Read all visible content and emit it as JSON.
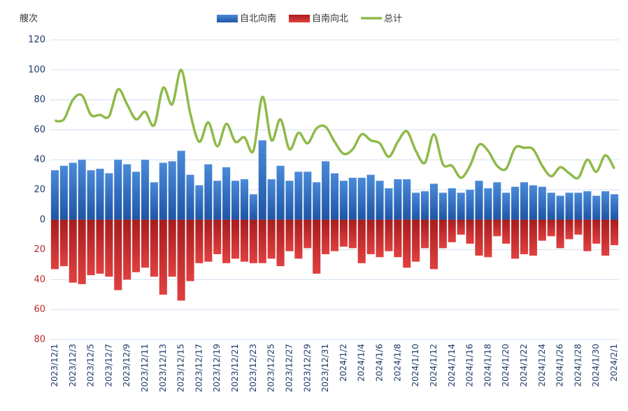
{
  "chart_data": {
    "type": "bar_line",
    "y_label": "艘次",
    "categories": [
      "2023/12/1",
      null,
      "2023/12/3",
      null,
      "2023/12/5",
      null,
      "2023/12/7",
      null,
      "2023/12/9",
      null,
      "2023/12/11",
      null,
      "2023/12/13",
      null,
      "2023/12/15",
      null,
      "2023/12/17",
      null,
      "2023/12/19",
      null,
      "2023/12/21",
      null,
      "2023/12/23",
      null,
      "2023/12/25",
      null,
      "2023/12/27",
      null,
      "2023/12/29",
      null,
      "2023/12/31",
      null,
      "2024/1/2",
      null,
      "2024/1/4",
      null,
      "2024/1/6",
      null,
      "2024/1/8",
      null,
      "2024/1/10",
      null,
      "2024/1/12",
      null,
      "2024/1/14",
      null,
      "2024/1/16",
      null,
      "2024/1/18",
      null,
      "2024/1/20",
      null,
      "2024/1/22",
      null,
      "2024/1/24",
      null,
      "2024/1/26",
      null,
      "2024/1/28",
      null,
      "2024/1/30",
      null,
      "2024/2/1"
    ],
    "series": [
      {
        "name": "自北向南",
        "type": "bar",
        "color": "#2f6fc4",
        "values": [
          33,
          36,
          38,
          40,
          33,
          34,
          31,
          40,
          37,
          32,
          40,
          25,
          38,
          39,
          46,
          30,
          23,
          37,
          26,
          35,
          26,
          27,
          17,
          53,
          27,
          36,
          26,
          32,
          32,
          25,
          39,
          31,
          26,
          28,
          28,
          30,
          26,
          21,
          27,
          27,
          18,
          19,
          24,
          18,
          21,
          18,
          20,
          26,
          21,
          25,
          18,
          22,
          25,
          23,
          22,
          18,
          16,
          18,
          18,
          19,
          16,
          19,
          17
        ]
      },
      {
        "name": "自南向北",
        "type": "bar",
        "color": "#c62a2a",
        "values": [
          -33,
          -31,
          -42,
          -43,
          -37,
          -36,
          -38,
          -47,
          -40,
          -35,
          -32,
          -38,
          -50,
          -38,
          -54,
          -41,
          -29,
          -28,
          -23,
          -29,
          -26,
          -28,
          -29,
          -29,
          -26,
          -31,
          -21,
          -26,
          -19,
          -36,
          -23,
          -21,
          -18,
          -19,
          -29,
          -23,
          -25,
          -21,
          -25,
          -32,
          -28,
          -19,
          -33,
          -19,
          -15,
          -10,
          -16,
          -24,
          -25,
          -11,
          -16,
          -26,
          -23,
          -24,
          -14,
          -11,
          -19,
          -13,
          -10,
          -21,
          -16,
          -24,
          -17
        ]
      },
      {
        "name": "总计",
        "type": "line",
        "color": "#8fba4a",
        "values": [
          66,
          67,
          80,
          83,
          70,
          70,
          69,
          87,
          77,
          67,
          72,
          63,
          88,
          77,
          100,
          71,
          52,
          65,
          49,
          64,
          52,
          55,
          46,
          82,
          53,
          67,
          47,
          58,
          51,
          61,
          62,
          52,
          44,
          47,
          57,
          53,
          51,
          42,
          52,
          59,
          46,
          38,
          57,
          37,
          36,
          28,
          36,
          50,
          46,
          36,
          34,
          48,
          48,
          47,
          36,
          29,
          35,
          31,
          28,
          40,
          32,
          43,
          34
        ]
      }
    ],
    "ylim": [
      -80,
      120
    ],
    "yticks": [
      {
        "value": -80,
        "label": "80"
      },
      {
        "value": -60,
        "label": "60"
      },
      {
        "value": -40,
        "label": "40"
      },
      {
        "value": -20,
        "label": "20"
      },
      0,
      20,
      40,
      60,
      80,
      100,
      120
    ],
    "grid": true,
    "legend": "top"
  }
}
